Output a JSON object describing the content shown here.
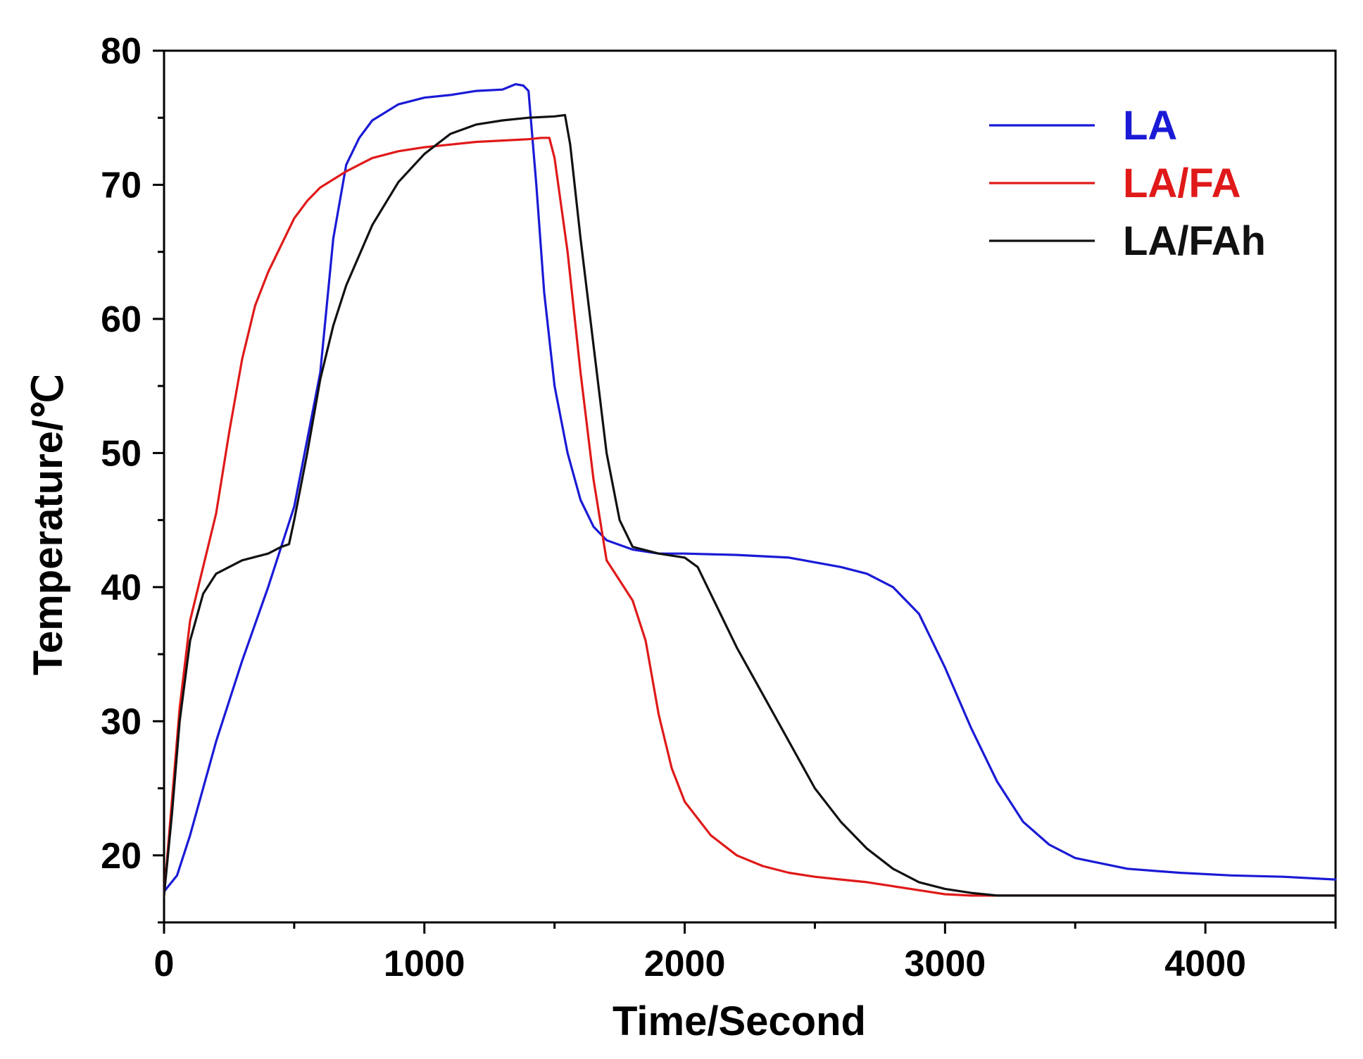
{
  "chart_data": {
    "type": "line",
    "title": "",
    "xlabel": "Time/Second",
    "ylabel": "Temperature/℃",
    "xlim": [
      0,
      4500
    ],
    "ylim": [
      15,
      80
    ],
    "x_ticks": [
      0,
      1000,
      2000,
      3000,
      4000
    ],
    "x_tick_labels": [
      "0",
      "1000",
      "2000",
      "3000",
      "4000"
    ],
    "y_ticks": [
      20,
      30,
      40,
      50,
      60,
      70,
      80
    ],
    "y_tick_labels": [
      "20",
      "30",
      "40",
      "50",
      "60",
      "70",
      "80"
    ],
    "x_minor_step": 500,
    "y_minor_step": 5,
    "grid": false,
    "legend_position": "top-right",
    "series": [
      {
        "name": "LA",
        "color": "#1a1ad6",
        "x": [
          0,
          50,
          100,
          200,
          300,
          400,
          500,
          550,
          600,
          650,
          700,
          750,
          800,
          900,
          1000,
          1100,
          1200,
          1300,
          1350,
          1380,
          1400,
          1430,
          1460,
          1500,
          1550,
          1600,
          1650,
          1700,
          1800,
          1900,
          2000,
          2200,
          2400,
          2600,
          2700,
          2800,
          2900,
          3000,
          3100,
          3200,
          3300,
          3400,
          3500,
          3700,
          3900,
          4100,
          4300,
          4500
        ],
        "y": [
          17.3,
          18.5,
          21.5,
          28.5,
          34.5,
          40.0,
          46.0,
          51.0,
          56.0,
          66.0,
          71.5,
          73.5,
          74.8,
          76.0,
          76.5,
          76.7,
          77.0,
          77.1,
          77.5,
          77.4,
          77.0,
          70.0,
          62.0,
          55.0,
          50.0,
          46.5,
          44.5,
          43.5,
          42.8,
          42.5,
          42.5,
          42.4,
          42.2,
          41.5,
          41.0,
          40.0,
          38.0,
          34.0,
          29.5,
          25.5,
          22.5,
          20.8,
          19.8,
          19.0,
          18.7,
          18.5,
          18.4,
          18.2
        ]
      },
      {
        "name": "LA/FA",
        "color": "#e01919",
        "x": [
          0,
          30,
          60,
          100,
          150,
          200,
          250,
          300,
          350,
          400,
          450,
          500,
          550,
          600,
          700,
          800,
          900,
          1000,
          1100,
          1200,
          1300,
          1400,
          1450,
          1480,
          1500,
          1550,
          1600,
          1650,
          1700,
          1750,
          1800,
          1850,
          1900,
          1950,
          2000,
          2100,
          2200,
          2300,
          2400,
          2500,
          2600,
          2700,
          2800,
          2900,
          3000,
          3100,
          3200,
          3300,
          3500,
          4000,
          4500
        ],
        "y": [
          17.0,
          24.0,
          31.0,
          37.5,
          41.5,
          45.5,
          51.5,
          57.0,
          61.0,
          63.5,
          65.5,
          67.5,
          68.8,
          69.8,
          71.0,
          72.0,
          72.5,
          72.8,
          73.0,
          73.2,
          73.3,
          73.4,
          73.5,
          73.5,
          72.0,
          65.0,
          56.0,
          48.0,
          42.0,
          40.5,
          39.0,
          36.0,
          30.5,
          26.5,
          24.0,
          21.5,
          20.0,
          19.2,
          18.7,
          18.4,
          18.2,
          18.0,
          17.7,
          17.4,
          17.1,
          17.0,
          17.0,
          17.0,
          17.0,
          17.0,
          17.0
        ]
      },
      {
        "name": "LA/FAh",
        "color": "#111111",
        "x": [
          0,
          30,
          60,
          100,
          150,
          200,
          300,
          400,
          450,
          480,
          500,
          550,
          600,
          650,
          700,
          800,
          900,
          1000,
          1100,
          1200,
          1300,
          1400,
          1500,
          1540,
          1560,
          1600,
          1650,
          1700,
          1750,
          1800,
          1900,
          2000,
          2050,
          2100,
          2150,
          2200,
          2300,
          2400,
          2500,
          2600,
          2700,
          2800,
          2900,
          3000,
          3100,
          3200,
          3250,
          3500,
          4000,
          4500
        ],
        "y": [
          17.0,
          23.0,
          30.0,
          36.0,
          39.5,
          41.0,
          42.0,
          42.5,
          43.0,
          43.2,
          45.0,
          50.0,
          55.5,
          59.5,
          62.5,
          67.0,
          70.2,
          72.3,
          73.8,
          74.5,
          74.8,
          75.0,
          75.1,
          75.2,
          73.0,
          66.0,
          58.0,
          50.0,
          45.0,
          43.0,
          42.5,
          42.2,
          41.5,
          39.5,
          37.5,
          35.5,
          32.0,
          28.5,
          25.0,
          22.5,
          20.5,
          19.0,
          18.0,
          17.5,
          17.2,
          17.0,
          17.0,
          17.0,
          17.0,
          17.0
        ]
      }
    ]
  }
}
